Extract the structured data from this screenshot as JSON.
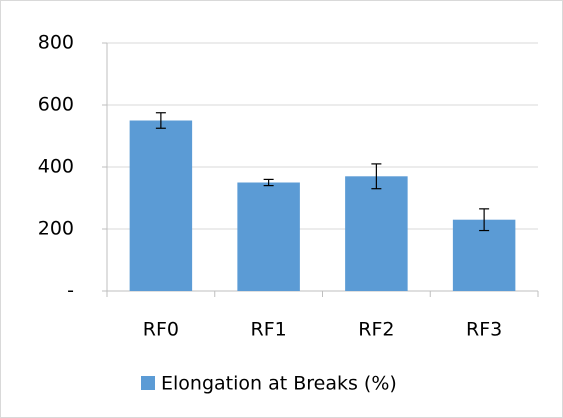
{
  "chart_data": {
    "type": "bar",
    "categories": [
      "RF0",
      "RF1",
      "RF2",
      "RF3"
    ],
    "series": [
      {
        "name": "Elongation at Breaks (%)",
        "color": "#5b9bd5",
        "values": [
          550,
          350,
          370,
          230
        ],
        "errors": [
          25,
          10,
          40,
          35
        ]
      }
    ],
    "ylim": [
      0,
      800
    ],
    "yticks": [
      {
        "value": 0,
        "label": "-"
      },
      200,
      400,
      600,
      800
    ],
    "grid": true,
    "legend": "bottom"
  }
}
